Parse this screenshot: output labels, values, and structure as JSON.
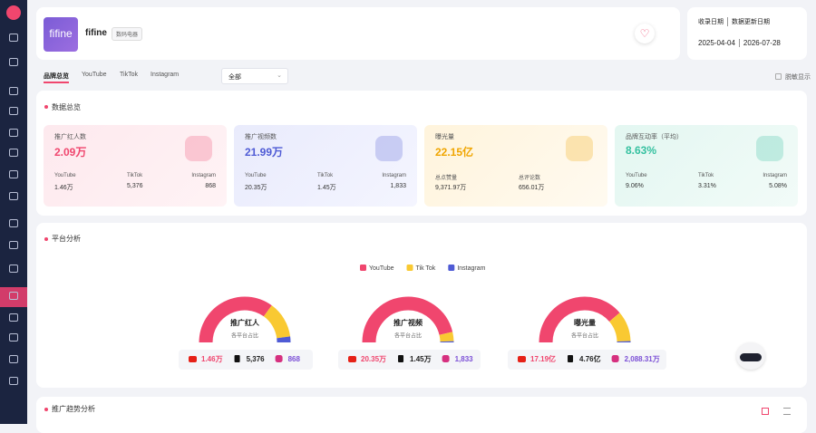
{
  "header": {
    "logo_text": "fifine",
    "brand": "fifine",
    "category": "数码电器"
  },
  "dates": {
    "labels": [
      "收录日期",
      "数据更新日期"
    ],
    "values": [
      "2025-04-04",
      "2026-07-28"
    ]
  },
  "tabs": {
    "items": [
      "品牌总览",
      "YouTube",
      "TikTok",
      "Instagram"
    ],
    "active": 0,
    "filter": "全部",
    "toggle": "脱敏显示"
  },
  "overview": {
    "title": "数据总览",
    "cards": [
      {
        "label": "推广红人数",
        "value": "2.09万",
        "color": "#f0466e",
        "bg": "linear-gradient(135deg,#fde9ee,#fff3f5)",
        "items": [
          {
            "name": "YouTube",
            "value": "1.46万"
          },
          {
            "name": "TikTok",
            "value": "5,376"
          },
          {
            "name": "Instagram",
            "value": "868"
          }
        ]
      },
      {
        "label": "推广视频数",
        "value": "21.99万",
        "color": "#4f5bd5",
        "bg": "linear-gradient(135deg,#e9ebfc,#f4f5ff)",
        "items": [
          {
            "name": "YouTube",
            "value": "20.35万"
          },
          {
            "name": "TikTok",
            "value": "1.45万"
          },
          {
            "name": "Instagram",
            "value": "1,833"
          }
        ]
      },
      {
        "label": "曝光量",
        "value": "22.15亿",
        "color": "#f0a500",
        "bg": "linear-gradient(135deg,#fff4dc,#fffaf0)",
        "items": [
          {
            "name": "总点赞量",
            "value": "9,371.97万"
          },
          {
            "name": "总评论数",
            "value": "656.01万"
          }
        ]
      },
      {
        "label": "品牌互动率（平均）",
        "value": "8.63%",
        "color": "#35c1a0",
        "bg": "linear-gradient(135deg,#e3f7f1,#f2fbf8)",
        "items": [
          {
            "name": "YouTube",
            "value": "9.06%"
          },
          {
            "name": "TikTok",
            "value": "3.31%"
          },
          {
            "name": "Instagram",
            "value": "5.08%"
          }
        ]
      }
    ]
  },
  "platform": {
    "title": "平台分析",
    "series": [
      {
        "name": "YouTube",
        "color": "#f0466e"
      },
      {
        "name": "Tik Tok",
        "color": "#f9c932"
      },
      {
        "name": "Instagram",
        "color": "#4f5bd5"
      }
    ],
    "gauges": [
      {
        "title": "推广红人",
        "subtitle": "各平台占比",
        "values": [
          14600,
          5376,
          868
        ],
        "value_labels": [
          "1.46万",
          "5,376",
          "868"
        ]
      },
      {
        "title": "推广视频",
        "subtitle": "各平台占比",
        "values": [
          203500,
          14500,
          1833
        ],
        "value_labels": [
          "20.35万",
          "1.45万",
          "1,833"
        ]
      },
      {
        "title": "曝光量",
        "subtitle": "各平台占比",
        "values": [
          1719000000,
          476000000,
          20883100
        ],
        "value_labels": [
          "17.19亿",
          "4.76亿",
          "2,088.31万"
        ]
      }
    ]
  },
  "trend": {
    "title": "推广趋势分析"
  }
}
